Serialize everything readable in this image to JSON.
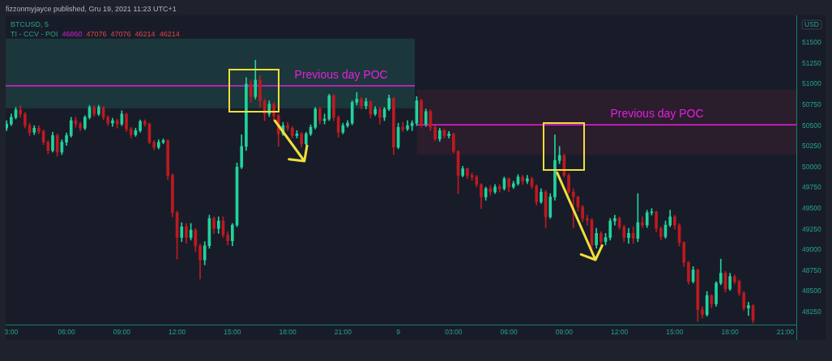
{
  "chart_data": {
    "type": "candlestick",
    "title": "BTCUSD, 5",
    "ylabel": "USD",
    "annotations": [
      "fizzonmyjayce published, Gru 19, 2021 11:23 UTC+1",
      "TI - CCV - POI",
      "46860",
      "47076",
      "47076",
      "46214",
      "46214"
    ],
    "x": [
      "2021-12-08T02:45",
      "2021-12-08T03:00",
      "2021-12-08T03:15",
      "2021-12-08T03:30",
      "2021-12-08T03:45",
      "2021-12-08T04:00",
      "2021-12-08T04:15",
      "2021-12-08T04:30",
      "2021-12-08T04:45",
      "2021-12-08T05:00",
      "2021-12-08T05:15",
      "2021-12-08T05:30",
      "2021-12-08T05:45",
      "2021-12-08T06:00",
      "2021-12-08T06:15",
      "2021-12-08T06:30",
      "2021-12-08T06:45",
      "2021-12-08T07:00",
      "2021-12-08T07:15",
      "2021-12-08T07:30",
      "2021-12-08T07:45",
      "2021-12-08T08:00",
      "2021-12-08T08:15",
      "2021-12-08T08:30",
      "2021-12-08T08:45",
      "2021-12-08T09:00",
      "2021-12-08T09:15",
      "2021-12-08T09:30",
      "2021-12-08T09:45",
      "2021-12-08T10:00",
      "2021-12-08T10:15",
      "2021-12-08T10:30",
      "2021-12-08T10:45",
      "2021-12-08T11:00",
      "2021-12-08T11:15",
      "2021-12-08T11:30",
      "2021-12-08T11:45",
      "2021-12-08T12:00",
      "2021-12-08T12:15",
      "2021-12-08T12:30",
      "2021-12-08T12:45",
      "2021-12-08T13:00",
      "2021-12-08T13:15",
      "2021-12-08T13:30",
      "2021-12-08T13:45",
      "2021-12-08T14:00",
      "2021-12-08T14:15",
      "2021-12-08T14:30",
      "2021-12-08T14:45",
      "2021-12-08T15:00",
      "2021-12-08T15:15",
      "2021-12-08T15:30",
      "2021-12-08T15:45",
      "2021-12-08T16:00",
      "2021-12-08T16:15",
      "2021-12-08T16:30",
      "2021-12-08T16:45",
      "2021-12-08T17:00",
      "2021-12-08T17:15",
      "2021-12-08T17:30",
      "2021-12-08T17:45",
      "2021-12-08T18:00",
      "2021-12-08T18:15",
      "2021-12-08T18:30",
      "2021-12-08T18:45",
      "2021-12-08T19:00",
      "2021-12-08T19:15",
      "2021-12-08T19:30",
      "2021-12-08T19:45",
      "2021-12-08T20:00",
      "2021-12-08T20:15",
      "2021-12-08T20:30",
      "2021-12-08T20:45",
      "2021-12-08T21:00",
      "2021-12-08T21:15",
      "2021-12-08T21:30",
      "2021-12-08T21:45",
      "2021-12-08T22:00",
      "2021-12-08T22:15",
      "2021-12-08T22:30",
      "2021-12-08T22:45",
      "2021-12-08T23:00",
      "2021-12-08T23:15",
      "2021-12-08T23:30",
      "2021-12-08T23:45",
      "2021-12-09T00:00",
      "2021-12-09T00:15",
      "2021-12-09T00:30",
      "2021-12-09T00:45",
      "2021-12-09T01:00",
      "2021-12-09T01:15",
      "2021-12-09T01:30",
      "2021-12-09T01:45",
      "2021-12-09T02:00",
      "2021-12-09T02:15",
      "2021-12-09T02:30",
      "2021-12-09T02:45",
      "2021-12-09T03:00",
      "2021-12-09T03:15",
      "2021-12-09T03:30",
      "2021-12-09T03:45",
      "2021-12-09T04:00",
      "2021-12-09T04:15",
      "2021-12-09T04:30",
      "2021-12-09T04:45",
      "2021-12-09T05:00",
      "2021-12-09T05:15",
      "2021-12-09T05:30",
      "2021-12-09T05:45",
      "2021-12-09T06:00",
      "2021-12-09T06:15",
      "2021-12-09T06:30",
      "2021-12-09T06:45",
      "2021-12-09T07:00",
      "2021-12-09T07:15",
      "2021-12-09T07:30",
      "2021-12-09T07:45",
      "2021-12-09T08:00",
      "2021-12-09T08:15",
      "2021-12-09T08:30",
      "2021-12-09T08:45",
      "2021-12-09T09:00",
      "2021-12-09T09:15",
      "2021-12-09T09:30",
      "2021-12-09T09:45",
      "2021-12-09T10:00",
      "2021-12-09T10:15",
      "2021-12-09T10:30",
      "2021-12-09T10:45",
      "2021-12-09T11:00",
      "2021-12-09T11:15",
      "2021-12-09T11:30",
      "2021-12-09T11:45",
      "2021-12-09T12:00",
      "2021-12-09T12:15",
      "2021-12-09T12:30",
      "2021-12-09T12:45",
      "2021-12-09T13:00",
      "2021-12-09T13:15",
      "2021-12-09T13:30",
      "2021-12-09T13:45",
      "2021-12-09T14:00",
      "2021-12-09T14:15",
      "2021-12-09T14:30",
      "2021-12-09T14:45",
      "2021-12-09T15:00",
      "2021-12-09T15:15",
      "2021-12-09T15:30",
      "2021-12-09T15:45",
      "2021-12-09T16:00",
      "2021-12-09T16:15",
      "2021-12-09T16:30",
      "2021-12-09T16:45",
      "2021-12-09T17:00",
      "2021-12-09T17:15",
      "2021-12-09T17:30",
      "2021-12-09T17:45",
      "2021-12-09T18:00",
      "2021-12-09T18:15",
      "2021-12-09T18:30",
      "2021-12-09T18:45",
      "2021-12-09T19:00",
      "2021-12-09T19:15"
    ],
    "ohlc": [
      [
        50470,
        50560,
        50440,
        50520
      ],
      [
        50520,
        50640,
        50500,
        50600
      ],
      [
        50600,
        50720,
        50580,
        50690
      ],
      [
        50690,
        50740,
        50600,
        50640
      ],
      [
        50640,
        50660,
        50470,
        50500
      ],
      [
        50500,
        50530,
        50380,
        50420
      ],
      [
        50420,
        50500,
        50390,
        50470
      ],
      [
        50470,
        50500,
        50400,
        50430
      ],
      [
        50430,
        50450,
        50270,
        50300
      ],
      [
        50300,
        50320,
        50160,
        50200
      ],
      [
        50200,
        50420,
        50180,
        50380
      ],
      [
        50380,
        50400,
        50130,
        50180
      ],
      [
        50180,
        50330,
        50150,
        50300
      ],
      [
        50300,
        50410,
        50260,
        50380
      ],
      [
        50380,
        50600,
        50360,
        50560
      ],
      [
        50560,
        50600,
        50480,
        50520
      ],
      [
        50520,
        50540,
        50440,
        50470
      ],
      [
        50470,
        50620,
        50450,
        50600
      ],
      [
        50600,
        50745,
        50580,
        50720
      ],
      [
        50720,
        50740,
        50610,
        50640
      ],
      [
        50640,
        50745,
        50620,
        50720
      ],
      [
        50720,
        50730,
        50570,
        50600
      ],
      [
        50600,
        50620,
        50500,
        50530
      ],
      [
        50530,
        50590,
        50490,
        50560
      ],
      [
        50560,
        50580,
        50470,
        50520
      ],
      [
        50520,
        50680,
        50500,
        50640
      ],
      [
        50640,
        50650,
        50430,
        50460
      ],
      [
        50460,
        50480,
        50350,
        50390
      ],
      [
        50390,
        50470,
        50370,
        50440
      ],
      [
        50440,
        50570,
        50420,
        50550
      ],
      [
        50550,
        50570,
        50490,
        50520
      ],
      [
        50520,
        50530,
        50280,
        50300
      ],
      [
        50300,
        50320,
        50210,
        50240
      ],
      [
        50240,
        50330,
        50220,
        50300
      ],
      [
        50300,
        50340,
        50280,
        50320
      ],
      [
        50320,
        50330,
        49850,
        49900
      ],
      [
        49900,
        49920,
        49400,
        49450
      ],
      [
        49450,
        49470,
        48890,
        49150
      ],
      [
        49150,
        49330,
        49100,
        49280
      ],
      [
        49280,
        49320,
        49080,
        49150
      ],
      [
        49150,
        49320,
        49120,
        49240
      ],
      [
        49240,
        49260,
        48980,
        49050
      ],
      [
        49050,
        49070,
        48650,
        48880
      ],
      [
        48880,
        49100,
        48820,
        49050
      ],
      [
        49050,
        49420,
        49020,
        49380
      ],
      [
        49380,
        49400,
        49200,
        49260
      ],
      [
        49260,
        49400,
        49200,
        49350
      ],
      [
        49350,
        49400,
        49150,
        49180
      ],
      [
        49180,
        49220,
        49060,
        49110
      ],
      [
        49110,
        49320,
        49050,
        49300
      ],
      [
        49300,
        50050,
        49280,
        50000
      ],
      [
        50000,
        50390,
        49980,
        50250
      ],
      [
        50250,
        51080,
        50200,
        51000
      ],
      [
        51000,
        51050,
        50780,
        50850
      ],
      [
        50850,
        51290,
        50820,
        51050
      ],
      [
        51050,
        51100,
        50720,
        50800
      ],
      [
        50800,
        50820,
        50560,
        50640
      ],
      [
        50640,
        50800,
        50610,
        50760
      ],
      [
        50760,
        50780,
        50560,
        50620
      ],
      [
        50620,
        50640,
        50250,
        50400
      ],
      [
        50400,
        50540,
        50380,
        50500
      ],
      [
        50500,
        50540,
        50440,
        50470
      ],
      [
        50470,
        50490,
        50350,
        50380
      ],
      [
        50380,
        50440,
        50350,
        50400
      ],
      [
        50400,
        50420,
        50240,
        50280
      ],
      [
        50280,
        50420,
        50260,
        50400
      ],
      [
        50400,
        50510,
        50380,
        50480
      ],
      [
        50480,
        50720,
        50460,
        50700
      ],
      [
        50700,
        50720,
        50520,
        50560
      ],
      [
        50560,
        50640,
        50520,
        50580
      ],
      [
        50580,
        50880,
        50560,
        50860
      ],
      [
        50860,
        50880,
        50560,
        50600
      ],
      [
        50600,
        50620,
        50360,
        50420
      ],
      [
        50420,
        50530,
        50400,
        50500
      ],
      [
        50500,
        50560,
        50480,
        50530
      ],
      [
        50530,
        50800,
        50510,
        50780
      ],
      [
        50780,
        50900,
        50750,
        50820
      ],
      [
        50820,
        50840,
        50700,
        50740
      ],
      [
        50740,
        50830,
        50700,
        50790
      ],
      [
        50790,
        50800,
        50590,
        50640
      ],
      [
        50640,
        50730,
        50620,
        50700
      ],
      [
        50700,
        50720,
        50520,
        50600
      ],
      [
        50600,
        50720,
        50560,
        50700
      ],
      [
        50700,
        50870,
        50680,
        50830
      ],
      [
        50830,
        50840,
        50150,
        50240
      ],
      [
        50240,
        50530,
        50220,
        50480
      ],
      [
        50480,
        50540,
        50430,
        50460
      ],
      [
        50460,
        50560,
        50440,
        50500
      ],
      [
        50500,
        50560,
        50440,
        50530
      ],
      [
        50530,
        50850,
        50500,
        50800
      ],
      [
        50800,
        50820,
        50480,
        50520
      ],
      [
        50520,
        50700,
        50490,
        50670
      ],
      [
        50670,
        50690,
        50440,
        50480
      ],
      [
        50480,
        50500,
        50320,
        50340
      ],
      [
        50340,
        50470,
        50310,
        50440
      ],
      [
        50440,
        50460,
        50350,
        50380
      ],
      [
        50380,
        50430,
        50350,
        50400
      ],
      [
        50400,
        50410,
        50170,
        50190
      ],
      [
        50190,
        50200,
        49680,
        49900
      ],
      [
        49900,
        50010,
        49880,
        49980
      ],
      [
        49980,
        49990,
        49860,
        49900
      ],
      [
        49900,
        49930,
        49840,
        49880
      ],
      [
        49880,
        49900,
        49760,
        49790
      ],
      [
        49790,
        49800,
        49500,
        49640
      ],
      [
        49640,
        49760,
        49600,
        49740
      ],
      [
        49740,
        49780,
        49660,
        49700
      ],
      [
        49700,
        49790,
        49680,
        49760
      ],
      [
        49760,
        49790,
        49700,
        49740
      ],
      [
        49740,
        49880,
        49720,
        49860
      ],
      [
        49860,
        49870,
        49700,
        49760
      ],
      [
        49760,
        49830,
        49740,
        49800
      ],
      [
        49800,
        49910,
        49780,
        49880
      ],
      [
        49880,
        49900,
        49790,
        49830
      ],
      [
        49830,
        49900,
        49800,
        49860
      ],
      [
        49860,
        49880,
        49740,
        49770
      ],
      [
        49770,
        49790,
        49540,
        49580
      ],
      [
        49580,
        49740,
        49560,
        49700
      ],
      [
        49700,
        49720,
        49270,
        49400
      ],
      [
        49400,
        49680,
        49380,
        49640
      ],
      [
        49640,
        50390,
        49600,
        50080
      ],
      [
        50080,
        50250,
        50040,
        50140
      ],
      [
        50140,
        50160,
        49880,
        49900
      ],
      [
        49900,
        49920,
        49680,
        49700
      ],
      [
        49700,
        49740,
        49270,
        49640
      ],
      [
        49640,
        49650,
        49470,
        49520
      ],
      [
        49520,
        49540,
        49340,
        49380
      ],
      [
        49380,
        49420,
        49300,
        49360
      ],
      [
        49360,
        49380,
        48960,
        49060
      ],
      [
        49060,
        49260,
        49020,
        49200
      ],
      [
        49200,
        49220,
        49050,
        49100
      ],
      [
        49100,
        49200,
        49060,
        49150
      ],
      [
        49150,
        49380,
        49120,
        49350
      ],
      [
        49350,
        49420,
        49300,
        49380
      ],
      [
        49380,
        49400,
        49250,
        49280
      ],
      [
        49280,
        49300,
        49100,
        49150
      ],
      [
        49150,
        49260,
        49080,
        49200
      ],
      [
        49200,
        49280,
        49080,
        49140
      ],
      [
        49140,
        49680,
        49100,
        49330
      ],
      [
        49330,
        49400,
        49270,
        49300
      ],
      [
        49300,
        49480,
        49270,
        49450
      ],
      [
        49450,
        49500,
        49420,
        49460
      ],
      [
        49460,
        49470,
        49220,
        49260
      ],
      [
        49260,
        49280,
        49120,
        49160
      ],
      [
        49160,
        49350,
        49140,
        49300
      ],
      [
        49300,
        49480,
        49280,
        49400
      ],
      [
        49400,
        49420,
        49250,
        49300
      ],
      [
        49300,
        49320,
        49050,
        49090
      ],
      [
        49090,
        49100,
        48800,
        48850
      ],
      [
        48850,
        48860,
        48590,
        48620
      ],
      [
        48620,
        48800,
        48600,
        48760
      ],
      [
        48760,
        48770,
        48140,
        48280
      ],
      [
        48280,
        48320,
        48180,
        48220
      ],
      [
        48220,
        48500,
        48200,
        48450
      ],
      [
        48450,
        48460,
        48300,
        48350
      ],
      [
        48350,
        48620,
        48320,
        48600
      ],
      [
        48600,
        48890,
        48580,
        48720
      ],
      [
        48720,
        48740,
        48490,
        48530
      ],
      [
        48530,
        48720,
        48510,
        48680
      ],
      [
        48680,
        48700,
        48590,
        48620
      ],
      [
        48620,
        48640,
        48450,
        48480
      ],
      [
        48480,
        48500,
        48270,
        48300
      ],
      [
        48300,
        48370,
        48210,
        48330
      ],
      [
        48330,
        48340,
        48120,
        48150
      ]
    ],
    "series": [
      {
        "name": "Previous day POC",
        "type": "line",
        "color": "#e81ee0",
        "x": [
          "2021-12-08T02:42",
          "2021-12-09T00:54"
        ],
        "values": [
          50980,
          50980
        ],
        "lower": [
          50710,
          50710
        ],
        "upper": [
          51550,
          51550
        ]
      },
      {
        "name": "Previous day POC",
        "type": "line",
        "color": "#e81ee0",
        "x": [
          "2021-12-09T01:00",
          "2021-12-09T21:36"
        ],
        "values": [
          50510,
          50510
        ],
        "lower": [
          50150,
          50150
        ],
        "upper": [
          50935,
          50935
        ]
      }
    ],
    "xlim": [
      "2021-12-08T02:42",
      "2021-12-09T21:36"
    ],
    "xticks": [
      {
        "value": "2021-12-08T03:00",
        "label": "3:00"
      },
      {
        "value": "2021-12-08T06:00",
        "label": "06:00"
      },
      {
        "value": "2021-12-08T09:00",
        "label": "09:00"
      },
      {
        "value": "2021-12-08T12:00",
        "label": "12:00"
      },
      {
        "value": "2021-12-08T15:00",
        "label": "15:00"
      },
      {
        "value": "2021-12-08T18:00",
        "label": "18:00"
      },
      {
        "value": "2021-12-08T21:00",
        "label": "21:00"
      },
      {
        "value": "2021-12-09T00:00",
        "label": "9"
      },
      {
        "value": "2021-12-09T03:00",
        "label": "03:00"
      },
      {
        "value": "2021-12-09T06:00",
        "label": "06:00"
      },
      {
        "value": "2021-12-09T09:00",
        "label": "09:00"
      },
      {
        "value": "2021-12-09T12:00",
        "label": "12:00"
      },
      {
        "value": "2021-12-09T15:00",
        "label": "15:00"
      },
      {
        "value": "2021-12-09T18:00",
        "label": "18:00"
      },
      {
        "value": "2021-12-09T21:00",
        "label": "21:00"
      }
    ],
    "ylim": [
      48100,
      51830
    ],
    "yticks": [
      48250,
      48500,
      48750,
      49000,
      49250,
      49500,
      49750,
      50000,
      50250,
      50500,
      50750,
      51000,
      51250,
      51500
    ]
  }
}
